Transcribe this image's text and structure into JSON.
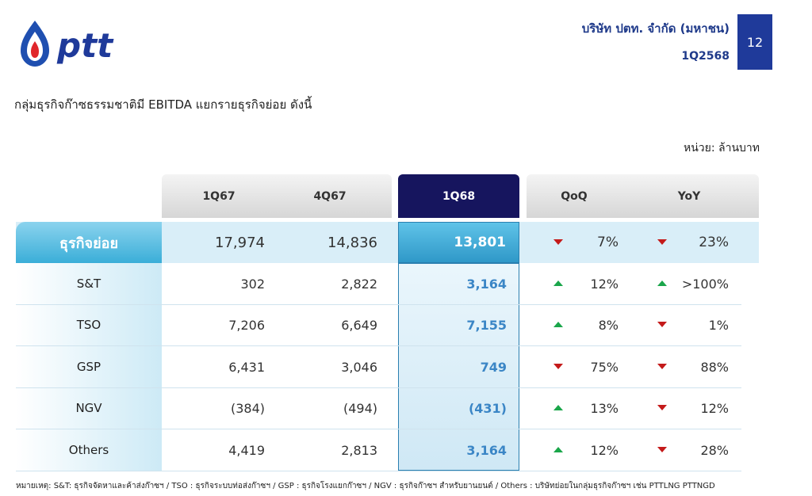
{
  "header": {
    "logo_text": "ptt",
    "company": "บริษัท ปตท. จำกัด (มหาชน)",
    "period": "1Q2568",
    "page_number": "12",
    "brand_color": "#1f3a8a"
  },
  "heading": "กลุ่มธุรกิจก๊าซธรรมชาติมี EBITDA แยกรายธุรกิจย่อย ดังนี้",
  "unit": "หน่วย: ล้านบาท",
  "table": {
    "columns": [
      "1Q67",
      "4Q67",
      "1Q68",
      "QoQ",
      "YoY"
    ],
    "summary": {
      "label": "ธุรกิจย่อย",
      "q1_67": "17,974",
      "q4_67": "14,836",
      "q1_68": "13,801",
      "qoq": "7%",
      "qoq_dir": "down",
      "yoy": "23%",
      "yoy_dir": "down"
    },
    "rows": [
      {
        "label": "S&T",
        "q1_67": "302",
        "q4_67": "2,822",
        "q1_68": "3,164",
        "qoq": "12%",
        "qoq_dir": "up",
        "yoy": ">100%",
        "yoy_dir": "up"
      },
      {
        "label": "TSO",
        "q1_67": "7,206",
        "q4_67": "6,649",
        "q1_68": "7,155",
        "qoq": "8%",
        "qoq_dir": "up",
        "yoy": "1%",
        "yoy_dir": "down"
      },
      {
        "label": "GSP",
        "q1_67": "6,431",
        "q4_67": "3,046",
        "q1_68": "749",
        "qoq": "75%",
        "qoq_dir": "down",
        "yoy": "88%",
        "yoy_dir": "down"
      },
      {
        "label": "NGV",
        "q1_67": "(384)",
        "q4_67": "(494)",
        "q1_68": "(431)",
        "qoq": "13%",
        "qoq_dir": "up",
        "yoy": "12%",
        "yoy_dir": "down"
      },
      {
        "label": "Others",
        "q1_67": "4,419",
        "q4_67": "2,813",
        "q1_68": "3,164",
        "qoq": "12%",
        "qoq_dir": "up",
        "yoy": "28%",
        "yoy_dir": "down"
      }
    ]
  },
  "footnote": "หมายเหตุ: S&T: ธุรกิจจัดหาและค้าส่งก๊าซฯ / TSO : ธุรกิจระบบท่อส่งก๊าซฯ / GSP : ธุรกิจโรงแยกก๊าซฯ / NGV : ธุรกิจก๊าซฯ สำหรับยานยนต์ / Others : บริษัทย่อยในกลุ่มธุรกิจก๊าซฯ เช่น PTTLNG PTTNGD"
}
